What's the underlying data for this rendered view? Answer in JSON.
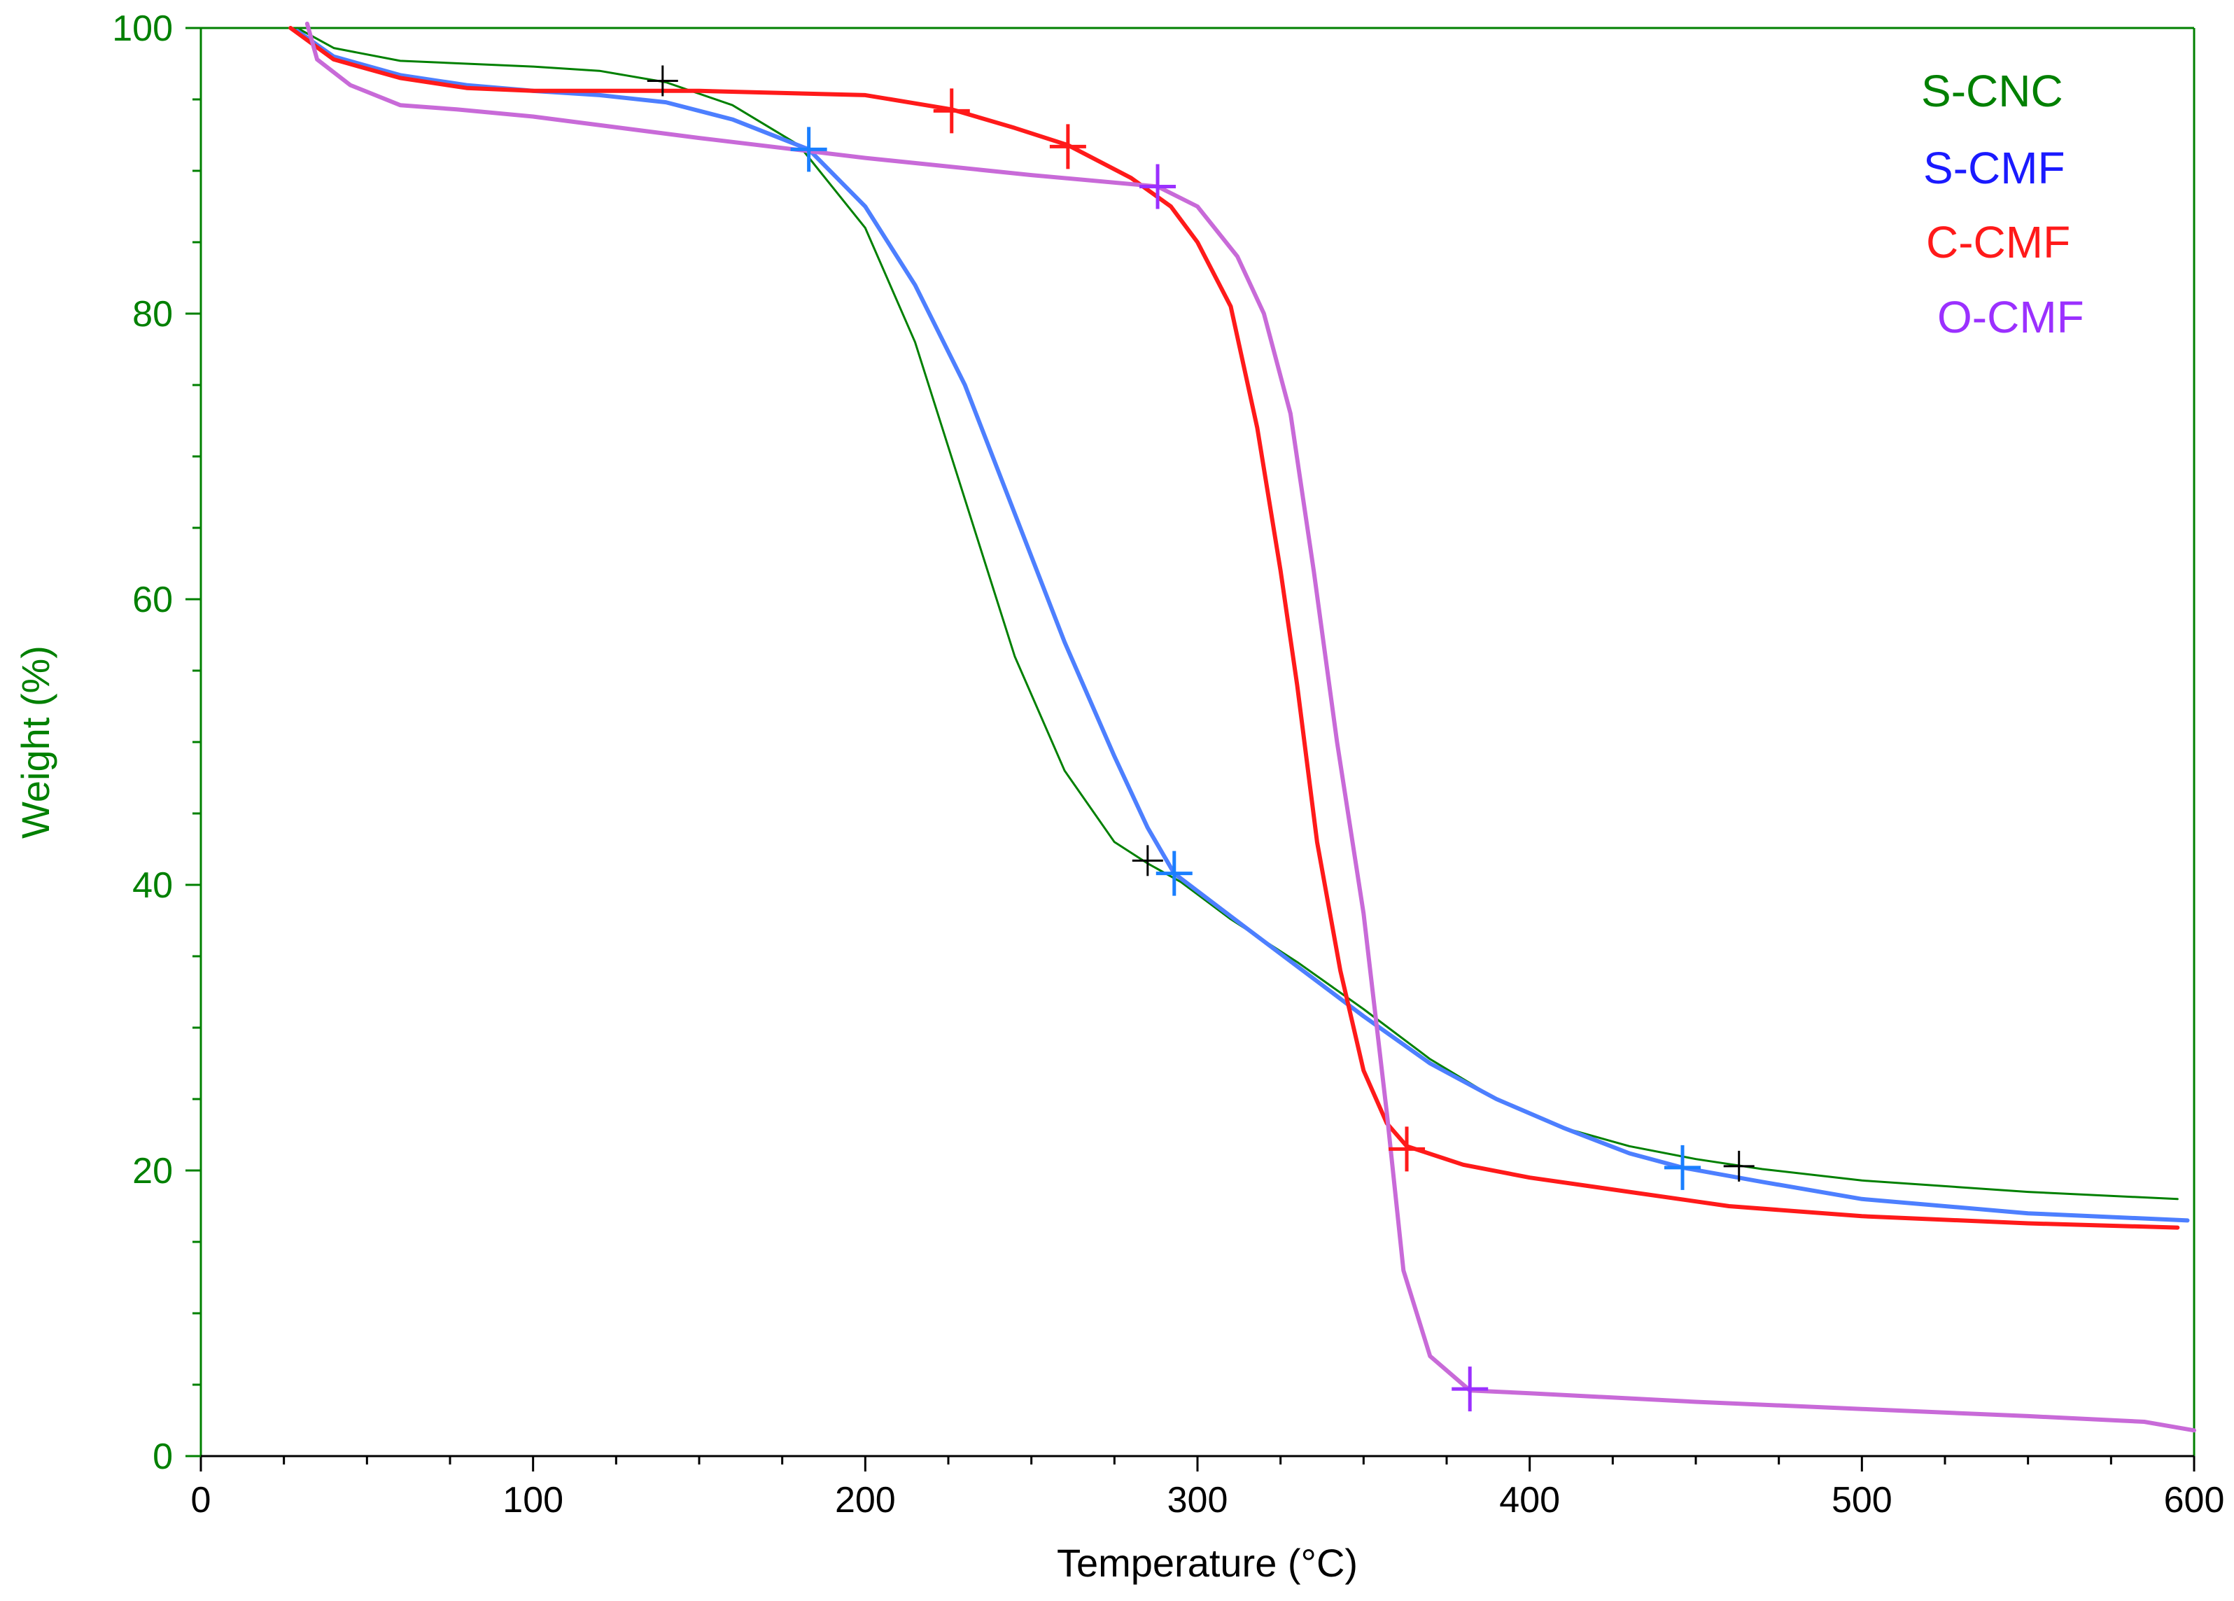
{
  "chart_data": {
    "type": "line",
    "title": "",
    "xlabel": "Temperature (°C)",
    "ylabel": "Weight (%)",
    "xlim": [
      0,
      600
    ],
    "ylim": [
      0,
      100
    ],
    "x_ticks": [
      "0",
      "100",
      "200",
      "300",
      "400",
      "500",
      "600"
    ],
    "y_ticks": [
      "0",
      "20",
      "40",
      "60",
      "80",
      "100"
    ],
    "grid": false,
    "legend_position": "top-right",
    "colors": {
      "axis_y": "#008000",
      "axis_x": "#000000",
      "S-CNC": "#008000",
      "S-CMF": "#1a1aff",
      "C-CMF": "#ff1a1a",
      "O-CMF": "#9b30ff"
    },
    "series": [
      {
        "name": "S-CNC",
        "legend_color": "#008000",
        "line_color": "#008000",
        "points": [
          [
            29,
            100
          ],
          [
            40,
            98.6
          ],
          [
            60,
            97.7
          ],
          [
            80,
            97.5
          ],
          [
            100,
            97.3
          ],
          [
            120,
            97
          ],
          [
            140,
            96.2
          ],
          [
            160,
            94.6
          ],
          [
            180,
            91.8
          ],
          [
            200,
            86
          ],
          [
            215,
            78
          ],
          [
            230,
            67
          ],
          [
            245,
            56
          ],
          [
            260,
            48
          ],
          [
            275,
            43
          ],
          [
            285,
            41.5
          ],
          [
            295,
            40.2
          ],
          [
            310,
            37.6
          ],
          [
            330,
            34.6
          ],
          [
            350,
            31.3
          ],
          [
            370,
            27.8
          ],
          [
            390,
            25
          ],
          [
            410,
            23
          ],
          [
            430,
            21.7
          ],
          [
            450,
            20.8
          ],
          [
            470,
            20.1
          ],
          [
            500,
            19.3
          ],
          [
            550,
            18.5
          ],
          [
            595,
            18
          ]
        ],
        "markers": [
          {
            "x": 139,
            "y": 96.3
          },
          {
            "x": 285,
            "y": 41.7
          },
          {
            "x": 463,
            "y": 20.3
          }
        ],
        "marker_color": "#000000"
      },
      {
        "name": "S-CMF",
        "legend_color": "#1a1aff",
        "line_color": "#4d7fff",
        "points": [
          [
            29,
            99.8
          ],
          [
            40,
            98
          ],
          [
            60,
            96.7
          ],
          [
            80,
            96
          ],
          [
            100,
            95.6
          ],
          [
            120,
            95.3
          ],
          [
            140,
            94.8
          ],
          [
            160,
            93.6
          ],
          [
            183,
            91.5
          ],
          [
            200,
            87.5
          ],
          [
            215,
            82
          ],
          [
            230,
            75
          ],
          [
            245,
            66
          ],
          [
            260,
            57
          ],
          [
            275,
            49
          ],
          [
            285,
            44
          ],
          [
            293,
            40.8
          ],
          [
            310,
            37.8
          ],
          [
            330,
            34.3
          ],
          [
            350,
            30.8
          ],
          [
            370,
            27.5
          ],
          [
            390,
            25
          ],
          [
            410,
            23
          ],
          [
            430,
            21.2
          ],
          [
            446,
            20.2
          ],
          [
            470,
            19.2
          ],
          [
            500,
            18
          ],
          [
            550,
            17
          ],
          [
            598,
            16.5
          ]
        ],
        "markers": [
          {
            "x": 183,
            "y": 91.5
          },
          {
            "x": 293,
            "y": 40.8
          },
          {
            "x": 446,
            "y": 20.2
          }
        ],
        "marker_color": "#1a7fff"
      },
      {
        "name": "C-CMF",
        "legend_color": "#ff1a1a",
        "line_color": "#ff1a1a",
        "points": [
          [
            27,
            100
          ],
          [
            40,
            97.8
          ],
          [
            60,
            96.5
          ],
          [
            80,
            95.8
          ],
          [
            100,
            95.6
          ],
          [
            150,
            95.6
          ],
          [
            200,
            95.3
          ],
          [
            226,
            94.3
          ],
          [
            245,
            93
          ],
          [
            261,
            91.8
          ],
          [
            280,
            89.5
          ],
          [
            292,
            87.5
          ],
          [
            300,
            85
          ],
          [
            310,
            80.5
          ],
          [
            318,
            72
          ],
          [
            325,
            62
          ],
          [
            330,
            54
          ],
          [
            336,
            43
          ],
          [
            343,
            34
          ],
          [
            350,
            27
          ],
          [
            357,
            23.3
          ],
          [
            363,
            21.7
          ],
          [
            380,
            20.4
          ],
          [
            400,
            19.5
          ],
          [
            430,
            18.5
          ],
          [
            460,
            17.5
          ],
          [
            500,
            16.8
          ],
          [
            550,
            16.3
          ],
          [
            595,
            16
          ]
        ],
        "markers": [
          {
            "x": 226,
            "y": 94.2
          },
          {
            "x": 261,
            "y": 91.7
          },
          {
            "x": 363,
            "y": 21.5
          }
        ],
        "marker_color": "#ff1a1a"
      },
      {
        "name": "O-CMF",
        "legend_color": "#9b30ff",
        "line_color": "#c86ad8",
        "points": [
          [
            32,
            100.3
          ],
          [
            35,
            97.8
          ],
          [
            45,
            96
          ],
          [
            60,
            94.6
          ],
          [
            77,
            94.3
          ],
          [
            100,
            93.8
          ],
          [
            150,
            92.3
          ],
          [
            200,
            90.9
          ],
          [
            250,
            89.7
          ],
          [
            288,
            88.9
          ],
          [
            300,
            87.5
          ],
          [
            312,
            84
          ],
          [
            320,
            80
          ],
          [
            328,
            73
          ],
          [
            335,
            62
          ],
          [
            342,
            50
          ],
          [
            350,
            38
          ],
          [
            357,
            24
          ],
          [
            362,
            13
          ],
          [
            370,
            7
          ],
          [
            382,
            4.6
          ],
          [
            400,
            4.4
          ],
          [
            450,
            3.8
          ],
          [
            500,
            3.3
          ],
          [
            550,
            2.8
          ],
          [
            585,
            2.4
          ],
          [
            600,
            1.8
          ]
        ],
        "markers": [
          {
            "x": 288,
            "y": 88.9
          },
          {
            "x": 382,
            "y": 4.7
          }
        ],
        "marker_color": "#9b30ff"
      }
    ]
  }
}
